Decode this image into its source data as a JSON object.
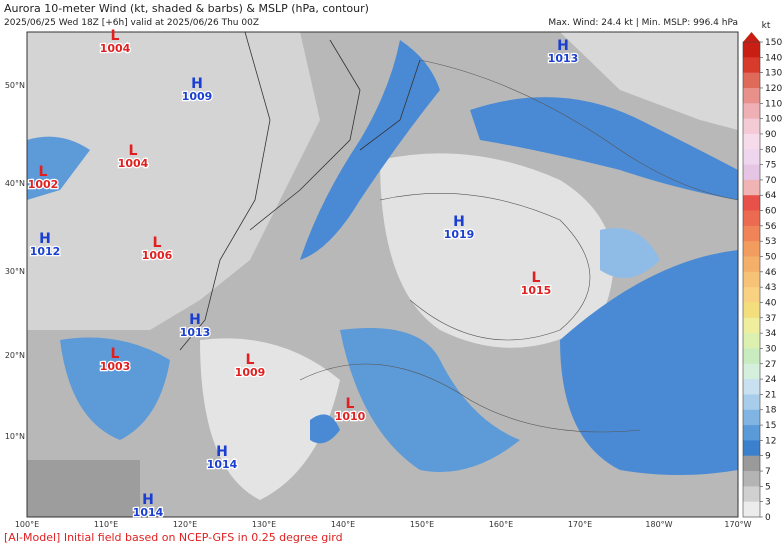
{
  "header": {
    "title": "Aurora 10-meter Wind (kt, shaded & barbs) & MSLP (hPa, contour)",
    "subtitle": "2025/06/25 Wed 18Z [+6h] valid at 2025/06/26 Thu 00Z",
    "stats": "Max. Wind: 24.4 kt | Min. MSLP: 996.4 hPa"
  },
  "map": {
    "lat_labels": [
      "50°N",
      "40°N",
      "30°N",
      "20°N",
      "10°N"
    ],
    "lon_labels": [
      "100°E",
      "110°E",
      "120°E",
      "130°E",
      "140°E",
      "150°E",
      "160°E",
      "170°E",
      "180°W",
      "170°W"
    ],
    "pressure_centers": [
      {
        "letter": "L",
        "value": 1004
      },
      {
        "letter": "H",
        "value": 1009
      },
      {
        "letter": "L",
        "value": 1004
      },
      {
        "letter": "L",
        "value": 1002
      },
      {
        "letter": "H",
        "value": 1012
      },
      {
        "letter": "L",
        "value": 1006
      },
      {
        "letter": "H",
        "value": 1013
      },
      {
        "letter": "L",
        "value": 1003
      },
      {
        "letter": "L",
        "value": 1009
      },
      {
        "letter": "L",
        "value": 1010
      },
      {
        "letter": "H",
        "value": 1014
      },
      {
        "letter": "H",
        "value": 1014
      },
      {
        "letter": "H",
        "value": 1013
      },
      {
        "letter": "H",
        "value": 1019
      },
      {
        "letter": "L",
        "value": 1015
      }
    ]
  },
  "colorbar": {
    "unit": "kt",
    "ticks": [
      150,
      140,
      130,
      120,
      110,
      100,
      90,
      80,
      75,
      70,
      64,
      60,
      56,
      53,
      50,
      46,
      43,
      40,
      37,
      34,
      30,
      27,
      24,
      21,
      18,
      15,
      12,
      9,
      7,
      5,
      3,
      0
    ],
    "colors": [
      "#c81e14",
      "#d83a2c",
      "#e06a5a",
      "#e8908a",
      "#eeb0b4",
      "#f4cad6",
      "#f6dcea",
      "#eed6ee",
      "#e6c4e4",
      "#f0b4b4",
      "#e8504a",
      "#ec6a50",
      "#f08458",
      "#f29c60",
      "#f4b06a",
      "#f6c276",
      "#f8d282",
      "#f4de7c",
      "#eeee9c",
      "#dcf0b0",
      "#c8ecc0",
      "#d4f0dc",
      "#c8e0f0",
      "#a8cdea",
      "#80b4e2",
      "#5a9ad8",
      "#3a80cc",
      "#9a9a9a",
      "#b4b4b4",
      "#d0d0d0",
      "#ececec"
    ]
  },
  "footer": "[AI-Model] Initial field based on NCEP-GFS in 0.25 degree gird"
}
